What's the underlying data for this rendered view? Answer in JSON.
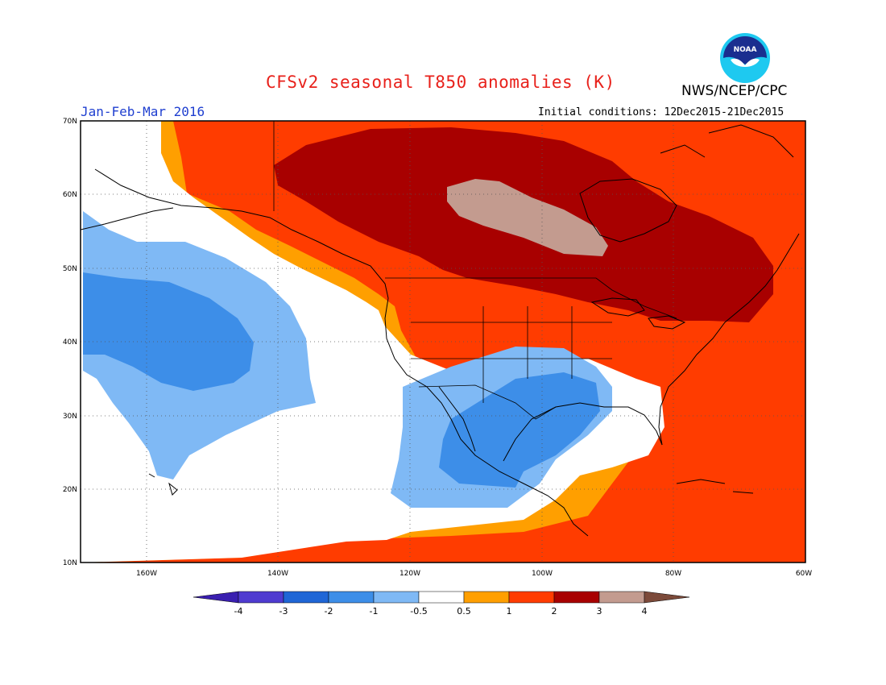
{
  "header": {
    "title": "CFSv2 seasonal T850 anomalies (K)",
    "organization": "NWS/NCEP/CPC",
    "logo_text": "NOAA",
    "period": "Jan-Feb-Mar 2016",
    "initial_conditions": "Initial conditions: 12Dec2015-21Dec2015"
  },
  "map": {
    "projection": "lat-lon",
    "lat_range": [
      10,
      70
    ],
    "lon_range": [
      -170,
      -60
    ],
    "gridlines": true,
    "lat_labels": [
      "70N",
      "60N",
      "50N",
      "40N",
      "30N",
      "20N",
      "10N"
    ],
    "lon_labels": [
      "160W",
      "140W",
      "120W",
      "100W",
      "80W",
      "60W"
    ]
  },
  "colorbar": {
    "labels": [
      "-4",
      "-3",
      "-2",
      "-1",
      "-0.5",
      "0.5",
      "1",
      "2",
      "3",
      "4"
    ],
    "colors": [
      "#3a1fb0",
      "#4f3bd0",
      "#1f66d6",
      "#3d8ee8",
      "#7fb9f5",
      "#ffffff",
      "#ff9f00",
      "#ff3c00",
      "#a80000",
      "#c39b8f",
      "#7c4a3a"
    ]
  }
}
